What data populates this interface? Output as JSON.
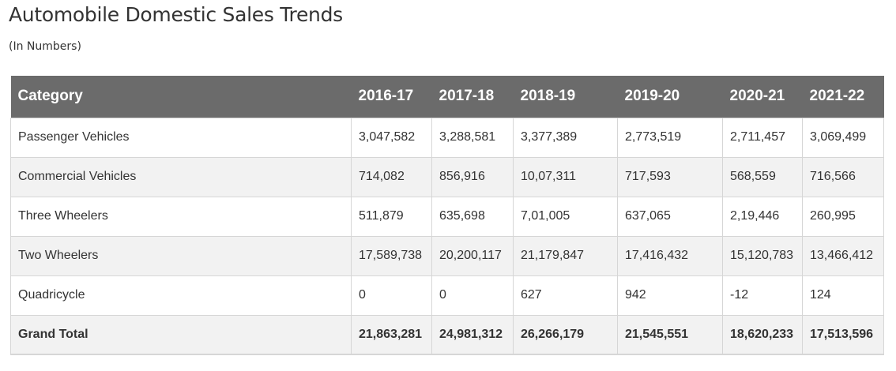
{
  "title": "Automobile Domestic Sales Trends",
  "subtitle": "(In Numbers)",
  "colors": {
    "header_bg": "#6b6b6b",
    "header_text": "#ffffff",
    "row_alt": "#f2f2f2",
    "border": "#d6d6d6"
  },
  "table": {
    "headers": [
      "Category",
      "2016-17",
      "2017-18",
      "2018-19",
      "2019-20",
      "2020-21",
      "2021-22"
    ],
    "rows": [
      [
        "Passenger Vehicles",
        "3,047,582",
        "3,288,581",
        "3,377,389",
        "2,773,519",
        "2,711,457",
        "3,069,499"
      ],
      [
        "Commercial Vehicles",
        "714,082",
        "856,916",
        "10,07,311",
        "717,593",
        "568,559",
        "716,566"
      ],
      [
        "Three Wheelers",
        "511,879",
        "635,698",
        "7,01,005",
        "637,065",
        "2,19,446",
        "260,995"
      ],
      [
        "Two Wheelers",
        "17,589,738",
        "20,200,117",
        "21,179,847",
        "17,416,432",
        "15,120,783",
        "13,466,412"
      ],
      [
        "Quadricycle",
        "0",
        "0",
        "627",
        "942",
        "-12",
        "124"
      ],
      [
        "Grand Total",
        "21,863,281",
        "24,981,312",
        "26,266,179",
        "21,545,551",
        "18,620,233",
        "17,513,596"
      ]
    ]
  }
}
